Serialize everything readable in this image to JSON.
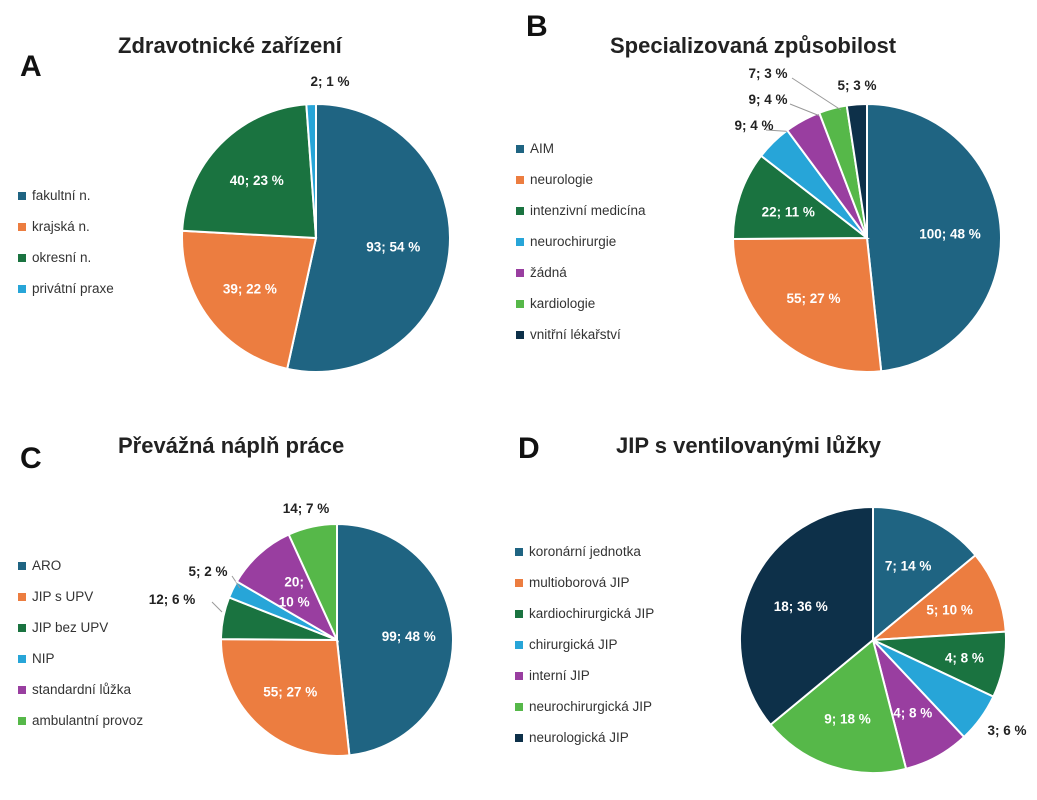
{
  "chart_data": [
    {
      "id": "A",
      "type": "pie",
      "panel_letter": "A",
      "title": "Zdravotnické zařízení",
      "labels": [
        "fakultní n.",
        "krajská n.",
        "okresní n.",
        "privátní praxe"
      ],
      "values": [
        93,
        39,
        40,
        2
      ],
      "percents": [
        54,
        22,
        23,
        1
      ],
      "data_labels": [
        "93; 54 %",
        "39; 22 %",
        "40; 23 %",
        "2; 1 %"
      ],
      "colors": [
        "#1f6482",
        "#ec7d40",
        "#1a7340",
        "#27a5d8"
      ]
    },
    {
      "id": "B",
      "type": "pie",
      "panel_letter": "B",
      "title": "Specializovaná způsobilost",
      "labels": [
        "AIM",
        "neurologie",
        "intenzivní medicína",
        "neurochirurgie",
        "žádná",
        "kardiologie",
        "vnitřní lékařství"
      ],
      "values": [
        100,
        55,
        22,
        9,
        9,
        7,
        5
      ],
      "percents": [
        48,
        27,
        11,
        4,
        4,
        3,
        3
      ],
      "data_labels": [
        "100; 48 %",
        "55; 27 %",
        "22; 11 %",
        "9; 4 %",
        "9; 4 %",
        "7; 3 %",
        "5; 3 %"
      ],
      "colors": [
        "#1f6482",
        "#ec7d40",
        "#1a7340",
        "#27a5d8",
        "#993ea0",
        "#56b849",
        "#0d3049"
      ]
    },
    {
      "id": "C",
      "type": "pie",
      "panel_letter": "C",
      "title": "Převážná náplň práce",
      "labels": [
        "ARO",
        "JIP s UPV",
        "JIP bez UPV",
        "NIP",
        "standardní lůžka",
        "ambulantní provoz"
      ],
      "values": [
        99,
        55,
        12,
        5,
        20,
        14
      ],
      "percents": [
        48,
        27,
        6,
        2,
        10,
        7
      ],
      "data_labels": [
        "99; 48 %",
        "55; 27 %",
        "12; 6 %",
        "5; 2 %",
        "20; 10 %",
        "14; 7 %"
      ],
      "colors": [
        "#1f6482",
        "#ec7d40",
        "#1a7340",
        "#27a5d8",
        "#993ea0",
        "#56b849"
      ]
    },
    {
      "id": "D",
      "type": "pie",
      "panel_letter": "D",
      "title": "JIP s ventilovanými lůžky",
      "labels": [
        "koronární jednotka",
        "multioborová JIP",
        "kardiochirurgická JIP",
        "chirurgická JIP",
        "interní JIP",
        "neurochirurgická JIP",
        "neurologická JIP"
      ],
      "values": [
        7,
        5,
        4,
        3,
        4,
        9,
        18
      ],
      "percents": [
        14,
        10,
        8,
        6,
        8,
        18,
        36
      ],
      "data_labels": [
        "7; 14 %",
        "5; 10 %",
        "4; 8 %",
        "3; 6 %",
        "4; 8 %",
        "9; 18 %",
        "18; 36 %"
      ],
      "colors": [
        "#1f6482",
        "#ec7d40",
        "#1a7340",
        "#27a5d8",
        "#993ea0",
        "#56b849",
        "#0d3049"
      ]
    }
  ]
}
